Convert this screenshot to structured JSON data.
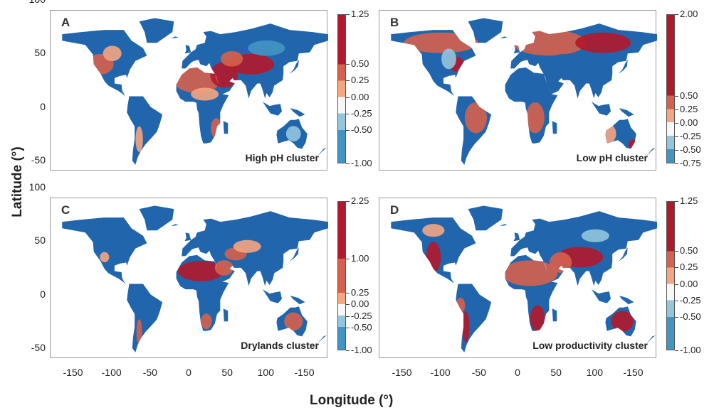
{
  "figure": {
    "y_axis_title": "Latitude (°)",
    "x_axis_title": "Longitude (°)"
  },
  "chart_data": [
    {
      "type": "map",
      "panel": "A",
      "label": "High pH cluster",
      "xlim": [
        -180,
        180
      ],
      "ylim": [
        -60,
        90
      ],
      "y_ticks": [
        "100",
        "50",
        "0",
        "-50"
      ],
      "colorbar": {
        "range": [
          -1.0,
          1.25
        ],
        "labels": [
          "1.25",
          "0.50",
          "0.25",
          "0.00",
          "-0.25",
          "-0.50",
          "-1.00"
        ],
        "colors": [
          "#b2182b",
          "#d6604d",
          "#f4a582",
          "#f7f7f7",
          "#92c5de",
          "#4393c3",
          "#2166ac"
        ]
      }
    },
    {
      "type": "map",
      "panel": "B",
      "label": "Low pH cluster",
      "xlim": [
        -180,
        180
      ],
      "ylim": [
        -60,
        90
      ],
      "colorbar": {
        "range": [
          -0.75,
          2.0
        ],
        "labels": [
          "2.00",
          "0.50",
          "0.25",
          "0.00",
          "-0.25",
          "-0.50",
          "-0.75"
        ],
        "colors": [
          "#b2182b",
          "#d6604d",
          "#f4a582",
          "#f7f7f7",
          "#92c5de",
          "#4393c3",
          "#2166ac"
        ]
      }
    },
    {
      "type": "map",
      "panel": "C",
      "label": "Drylands cluster",
      "xlim": [
        -180,
        180
      ],
      "ylim": [
        -60,
        90
      ],
      "y_ticks": [
        "100",
        "50",
        "0",
        "-50"
      ],
      "x_ticks": [
        "-150",
        "-100",
        "-50",
        "0",
        "50",
        "100",
        "-150"
      ],
      "colorbar": {
        "range": [
          -1.0,
          2.25
        ],
        "labels": [
          "2.25",
          "1.00",
          "0.25",
          "0.00",
          "-0.25",
          "-0.50",
          "-1.00"
        ],
        "colors": [
          "#b2182b",
          "#d6604d",
          "#f4a582",
          "#f7f7f7",
          "#92c5de",
          "#4393c3",
          "#2166ac"
        ]
      }
    },
    {
      "type": "map",
      "panel": "D",
      "label": "Low productivity cluster",
      "xlim": [
        -180,
        180
      ],
      "ylim": [
        -60,
        90
      ],
      "x_ticks": [
        "-150",
        "-100",
        "-50",
        "0",
        "50",
        "100",
        "-150"
      ],
      "colorbar": {
        "range": [
          -1.0,
          1.25
        ],
        "labels": [
          "1.25",
          "0.50",
          "0.25",
          "0.00",
          "-0.25",
          "-0.50",
          "-1.00"
        ],
        "colors": [
          "#b2182b",
          "#d6604d",
          "#f4a582",
          "#f7f7f7",
          "#92c5de",
          "#4393c3",
          "#2166ac"
        ]
      }
    }
  ]
}
